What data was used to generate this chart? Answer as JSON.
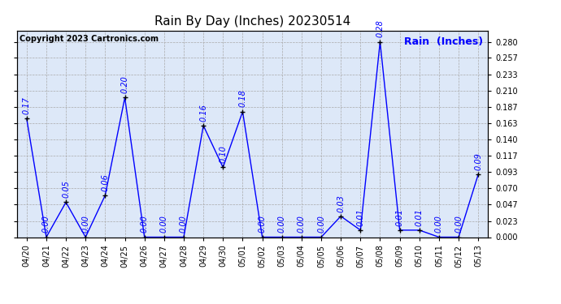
{
  "dates": [
    "04/20",
    "04/21",
    "04/22",
    "04/23",
    "04/24",
    "04/25",
    "04/26",
    "04/27",
    "04/28",
    "04/29",
    "04/30",
    "05/01",
    "05/02",
    "05/03",
    "05/04",
    "05/05",
    "05/06",
    "05/07",
    "05/08",
    "05/09",
    "05/10",
    "05/11",
    "05/12",
    "05/13"
  ],
  "values": [
    0.17,
    0.0,
    0.05,
    0.0,
    0.06,
    0.2,
    0.0,
    0.0,
    0.0,
    0.16,
    0.1,
    0.18,
    0.0,
    0.0,
    0.0,
    0.0,
    0.03,
    0.01,
    0.28,
    0.01,
    0.01,
    0.0,
    0.0,
    0.09
  ],
  "title": "Rain By Day (Inches) 20230514",
  "ylabel": "Rain  (Inches)",
  "copyright": "Copyright 2023 Cartronics.com",
  "line_color": "blue",
  "marker_color": "black",
  "label_color": "blue",
  "ylim": [
    0.0,
    0.2964
  ],
  "yticks": [
    0.0,
    0.023,
    0.047,
    0.07,
    0.093,
    0.117,
    0.14,
    0.163,
    0.187,
    0.21,
    0.233,
    0.257,
    0.28
  ],
  "bg_color": "#ffffff",
  "plot_bg_color": "#dde8f8",
  "title_fontsize": 11,
  "tick_fontsize": 7,
  "annotation_fontsize": 7,
  "copyright_fontsize": 7,
  "ylabel_fontsize": 9
}
